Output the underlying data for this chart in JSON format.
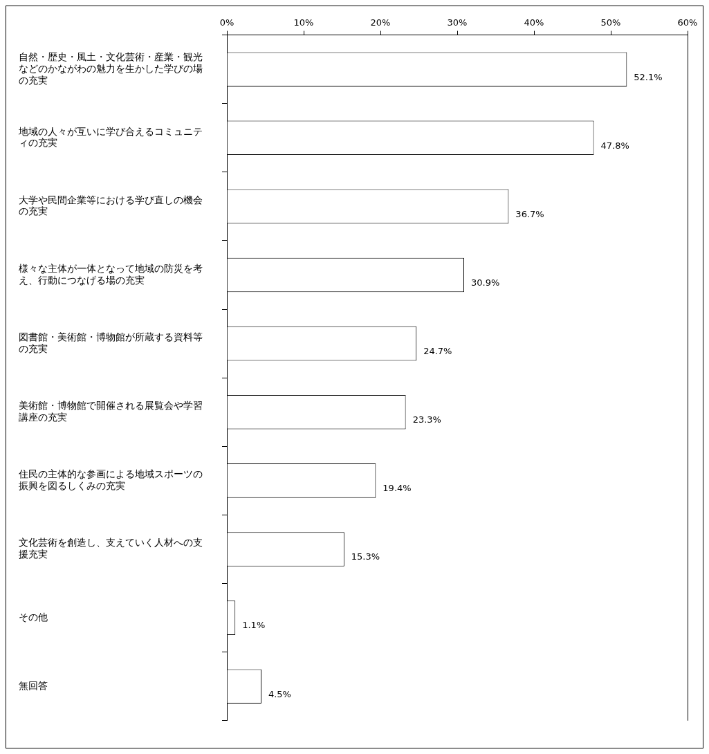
{
  "chart_data": {
    "type": "bar",
    "orientation": "horizontal",
    "categories": [
      "自然・歴史・風土・文化芸術・産業・観光などのかながわの魅力を生かした学びの場の充実",
      "地域の人々が互いに学び合えるコミュニティの充実",
      "大学や民間企業等における学び直しの機会の充実",
      "様々な主体が一体となって地域の防災を考え、行動につなげる場の充実",
      "図書館・美術館・博物館が所蔵する資料等の充実",
      "美術館・博物館で開催される展覧会や学習講座の充実",
      "住民の主体的な参画による地域スポーツの振興を図るしくみの充実",
      "文化芸術を創造し、支えていく人材への支援充実",
      "その他",
      "無回答"
    ],
    "values": [
      52.1,
      47.8,
      36.7,
      30.9,
      24.7,
      23.3,
      19.4,
      15.3,
      1.1,
      4.5
    ],
    "value_labels": [
      "52.1%",
      "47.8%",
      "36.7%",
      "30.9%",
      "24.7%",
      "23.3%",
      "19.4%",
      "15.3%",
      "1.1%",
      "4.5%"
    ],
    "color": "#ffffff",
    "xlim": [
      0,
      60
    ],
    "xticks": [
      {
        "value": 0,
        "label": "0%"
      },
      {
        "value": 10,
        "label": "10%"
      },
      {
        "value": 20,
        "label": "20%"
      },
      {
        "value": 30,
        "label": "30%"
      },
      {
        "value": 40,
        "label": "40%"
      },
      {
        "value": 50,
        "label": "50%"
      },
      {
        "value": 60,
        "label": "60%"
      }
    ],
    "grid": false,
    "legend": false
  }
}
